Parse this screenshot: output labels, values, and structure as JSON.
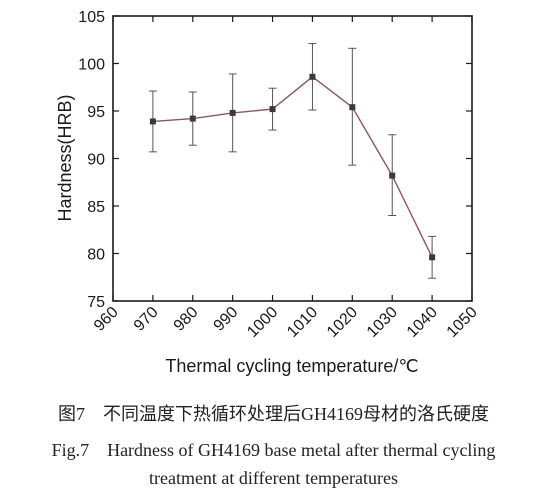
{
  "chart_data": {
    "type": "line",
    "xlabel": "Thermal cycling temperature/℃",
    "ylabel": "Hardness(HRB)",
    "xlim": [
      960,
      1050
    ],
    "ylim": [
      75,
      105
    ],
    "xticks": [
      "960",
      "970",
      "980",
      "990",
      "1000",
      "1010",
      "1020",
      "1030",
      "1040",
      "1050"
    ],
    "yticks": [
      "75",
      "80",
      "85",
      "90",
      "95",
      "100",
      "105"
    ],
    "grid": false,
    "series": [
      {
        "x": [
          970,
          980,
          990,
          1000,
          1010,
          1020,
          1030,
          1040
        ],
        "y": [
          93.9,
          94.2,
          94.8,
          95.2,
          98.6,
          95.4,
          88.2,
          79.6
        ],
        "err_low": [
          90.7,
          91.4,
          90.7,
          93.0,
          95.1,
          89.3,
          84.0,
          77.4
        ],
        "err_high": [
          97.1,
          97.0,
          98.9,
          97.4,
          102.1,
          101.6,
          92.5,
          81.8
        ],
        "color": "#8a5a5a"
      }
    ]
  },
  "caption": {
    "cn": "图7　不同温度下热循环处理后GH4169母材的洛氏硬度",
    "en_line1": "Fig.7　Hardness of GH4169 base metal after thermal cycling",
    "en_line2": "treatment at different temperatures"
  }
}
